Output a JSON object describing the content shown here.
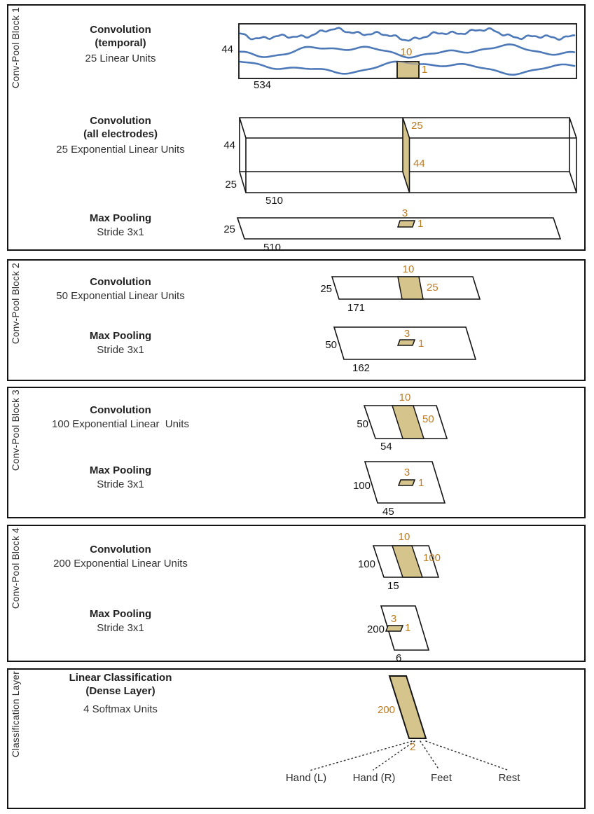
{
  "colors": {
    "kernel_tan": "#d6c48d",
    "dim_orange": "#bd7b22",
    "signal_blue": "#4d79b8",
    "line_black": "#141414"
  },
  "blocks": {
    "b1": {
      "side_label": "Conv-Pool Block 1",
      "conv_temporal": {
        "title": "Convolution",
        "subtitle": "(temporal)",
        "units": "25 Linear Units"
      },
      "signal": {
        "height": "44",
        "width": "534",
        "kernel_w": "10",
        "kernel_h": "1"
      },
      "conv_spatial": {
        "title": "Convolution",
        "subtitle": "(all electrodes)",
        "units": "25 Exponential Linear Units"
      },
      "box": {
        "height": "44",
        "depth": "25",
        "width": "510",
        "slice_top": "25",
        "slice_side": "44"
      },
      "pool": {
        "title": "Max Pooling",
        "subtitle": "Stride 3x1"
      },
      "pool_dims": {
        "height": "25",
        "width": "510",
        "kernel_w": "3",
        "kernel_h": "1"
      }
    },
    "b2": {
      "side_label": "Conv-Pool Block 2",
      "conv": {
        "title": "Convolution",
        "units": "50 Exponential Linear Units"
      },
      "conv_dims": {
        "height": "25",
        "width": "171",
        "kernel_w": "10",
        "kernel_h": "25"
      },
      "pool": {
        "title": "Max Pooling",
        "subtitle": "Stride 3x1"
      },
      "pool_dims": {
        "height": "50",
        "width": "162",
        "kernel_w": "3",
        "kernel_h": "1"
      }
    },
    "b3": {
      "side_label": "Conv-Pool Block 3",
      "conv": {
        "title": "Convolution",
        "units": "100 Exponential Linear  Units"
      },
      "conv_dims": {
        "height": "50",
        "width": "54",
        "kernel_w": "10",
        "kernel_h": "50"
      },
      "pool": {
        "title": "Max Pooling",
        "subtitle": "Stride 3x1"
      },
      "pool_dims": {
        "height": "100",
        "width": "45",
        "kernel_w": "3",
        "kernel_h": "1"
      }
    },
    "b4": {
      "side_label": "Conv-Pool Block 4",
      "conv": {
        "title": "Convolution",
        "units": "200 Exponential Linear Units"
      },
      "conv_dims": {
        "height": "100",
        "width": "15",
        "kernel_w": "10",
        "kernel_h": "100"
      },
      "pool": {
        "title": "Max Pooling",
        "subtitle": "Stride 3x1"
      },
      "pool_dims": {
        "height": "200",
        "width": "6",
        "kernel_w": "3",
        "kernel_h": "1"
      }
    },
    "b5": {
      "side_label": "Classification Layer",
      "dense": {
        "title": "Linear Classification",
        "subtitle": "(Dense Layer)",
        "units": "4 Softmax Units"
      },
      "dims": {
        "input": "200",
        "output": "2"
      },
      "classes": [
        "Hand (L)",
        "Hand (R)",
        "Feet",
        "Rest"
      ]
    }
  }
}
